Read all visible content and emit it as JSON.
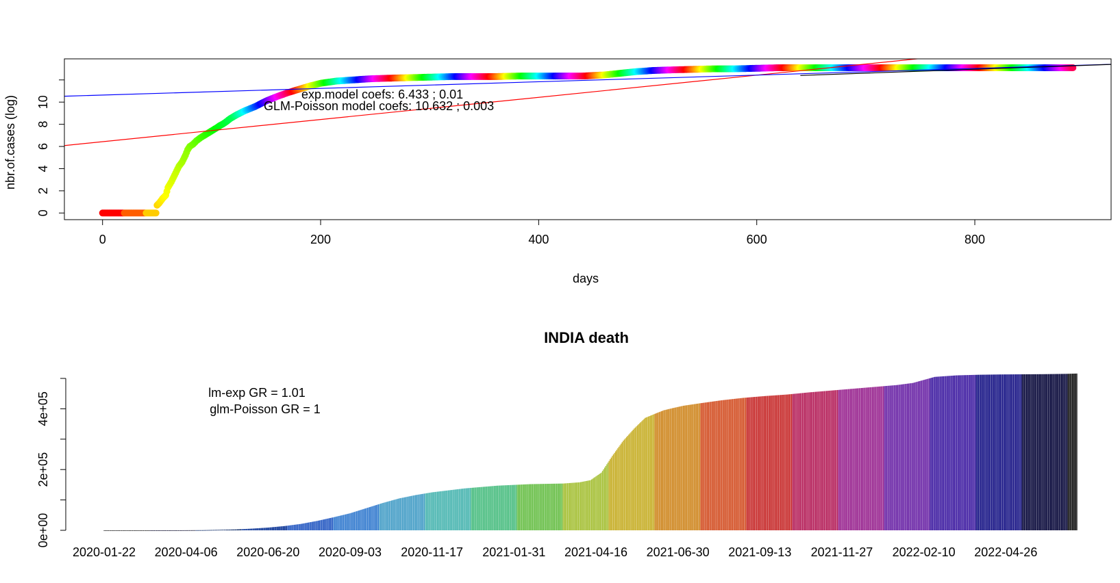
{
  "chart_data": [
    {
      "type": "scatter",
      "title": "",
      "xlabel": "days",
      "ylabel": "nbr.of.cases (log)",
      "xlim": [
        -35,
        925
      ],
      "ylim": [
        -0.6,
        13.9
      ],
      "xticks": [
        "0",
        "200",
        "400",
        "600",
        "800"
      ],
      "xtick_values": [
        0,
        200,
        400,
        600,
        800
      ],
      "yticks": [
        "0",
        "2",
        "4",
        "6",
        "8",
        "10"
      ],
      "ytick_values": [
        0,
        2,
        4,
        6,
        8,
        10
      ],
      "annotations": [
        "exp.model coefs:  6.433 ; 0.01",
        "GLM-Poisson model coefs:  10.632 ; 0.003"
      ],
      "series": [
        {
          "kind": "points",
          "color": "rainbow",
          "x": [
            0,
            15,
            30,
            45,
            49,
            50,
            52,
            55,
            58,
            60,
            63,
            66,
            70,
            73,
            76,
            78,
            80,
            83,
            86,
            90,
            95,
            100,
            105,
            108,
            110,
            113,
            117,
            122,
            130,
            140,
            150,
            160,
            170,
            180,
            190,
            200,
            215,
            230,
            245,
            260,
            280,
            300,
            320,
            340,
            360,
            380,
            400,
            420,
            440,
            460,
            475,
            490,
            505,
            520,
            540,
            560,
            580,
            600,
            620,
            640,
            660,
            680,
            700,
            720,
            740,
            760,
            780,
            800,
            820,
            840,
            860,
            880,
            890
          ],
          "y": [
            0,
            0,
            0,
            0,
            0,
            0.7,
            0.9,
            1.3,
            1.6,
            2.3,
            2.8,
            3.4,
            4.2,
            4.6,
            5.2,
            5.7,
            6.0,
            6.2,
            6.5,
            6.8,
            7.1,
            7.4,
            7.7,
            7.9,
            8.0,
            8.2,
            8.5,
            8.8,
            9.2,
            9.6,
            10.1,
            10.5,
            10.85,
            11.15,
            11.45,
            11.7,
            11.9,
            12.0,
            12.1,
            12.15,
            12.2,
            12.25,
            12.3,
            12.3,
            12.3,
            12.35,
            12.35,
            12.35,
            12.35,
            12.45,
            12.6,
            12.75,
            12.85,
            12.9,
            12.95,
            13.0,
            13.0,
            13.05,
            13.1,
            13.1,
            13.1,
            13.1,
            13.1,
            13.1,
            13.1,
            13.1,
            13.1,
            13.1,
            13.1,
            13.1,
            13.1,
            13.1,
            13.1
          ]
        },
        {
          "kind": "line",
          "color": "#ff0000",
          "x": [
            -35,
            925
          ],
          "y": [
            6.08,
            15.68
          ]
        },
        {
          "kind": "line",
          "color": "#0000ff",
          "x": [
            -35,
            925
          ],
          "y": [
            10.53,
            13.41
          ]
        },
        {
          "kind": "line",
          "color": "#000000",
          "x": [
            640,
            925
          ],
          "y": [
            12.4,
            13.4
          ]
        }
      ]
    },
    {
      "type": "bar",
      "title": "INDIA death",
      "xlabel": "",
      "ylabel": "",
      "ylim": [
        0,
        500000
      ],
      "yticks": [
        "0e+00",
        "2e+05",
        "4e+05"
      ],
      "ytick_values": [
        0,
        200000,
        400000
      ],
      "minor_yticks": [
        100000,
        300000,
        500000
      ],
      "xticks": [
        "2020-01-22",
        "2020-04-06",
        "2020-06-20",
        "2020-09-03",
        "2020-11-17",
        "2021-01-31",
        "2021-04-16",
        "2021-06-30",
        "2021-09-13",
        "2021-11-27",
        "2022-02-10",
        "2022-04-26"
      ],
      "xtick_days": [
        0,
        75,
        150,
        225,
        300,
        375,
        450,
        525,
        600,
        675,
        750,
        825
      ],
      "ndays": 891,
      "annotations": [
        "lm-exp GR =  1.01",
        "glm-Poisson GR =  1"
      ],
      "curve": {
        "day": [
          0,
          45,
          60,
          75,
          90,
          105,
          120,
          135,
          150,
          165,
          180,
          195,
          210,
          225,
          240,
          255,
          270,
          285,
          300,
          330,
          360,
          390,
          420,
          435,
          445,
          455,
          465,
          475,
          485,
          495,
          505,
          512,
          520,
          530,
          545,
          565,
          585,
          605,
          625,
          645,
          665,
          685,
          705,
          725,
          740,
          750,
          760,
          780,
          800,
          820,
          840,
          860,
          880,
          890
        ],
        "deaths": [
          0,
          0,
          50,
          200,
          500,
          1500,
          2800,
          5500,
          9000,
          14000,
          21000,
          31000,
          43000,
          56000,
          73000,
          90000,
          105000,
          116000,
          125000,
          138000,
          147000,
          152000,
          154000,
          158000,
          165000,
          190000,
          245000,
          295000,
          335000,
          370000,
          385000,
          395000,
          402000,
          410000,
          418000,
          428000,
          436000,
          442000,
          447000,
          454000,
          460000,
          466000,
          472000,
          478000,
          485000,
          495000,
          505000,
          510000,
          512000,
          513000,
          513500,
          514000,
          515000,
          516000
        ]
      }
    }
  ]
}
